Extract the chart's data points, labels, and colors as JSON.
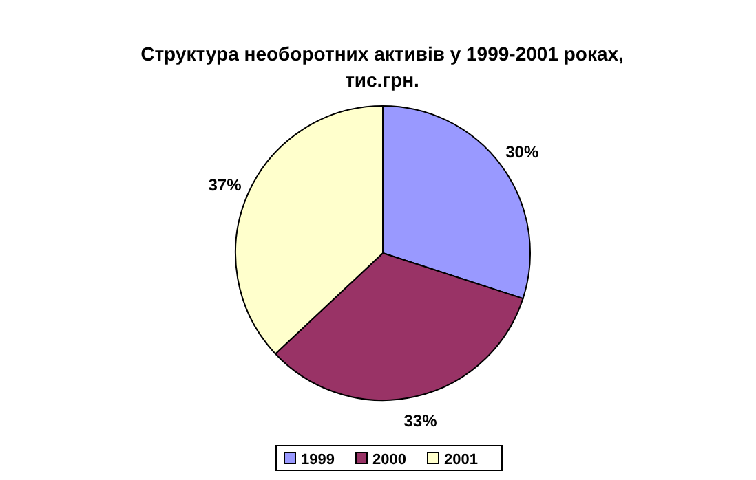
{
  "chart_data": {
    "type": "pie",
    "title": "Структура необоротних активів у 1999-2001 роках, тис.грн.",
    "categories": [
      "1999",
      "2000",
      "2001"
    ],
    "values": [
      30,
      33,
      37
    ],
    "colors": [
      "#9999ff",
      "#993366",
      "#ffffcc"
    ],
    "value_labels": [
      "30%",
      "33%",
      "37%"
    ],
    "legend": "bottom"
  }
}
